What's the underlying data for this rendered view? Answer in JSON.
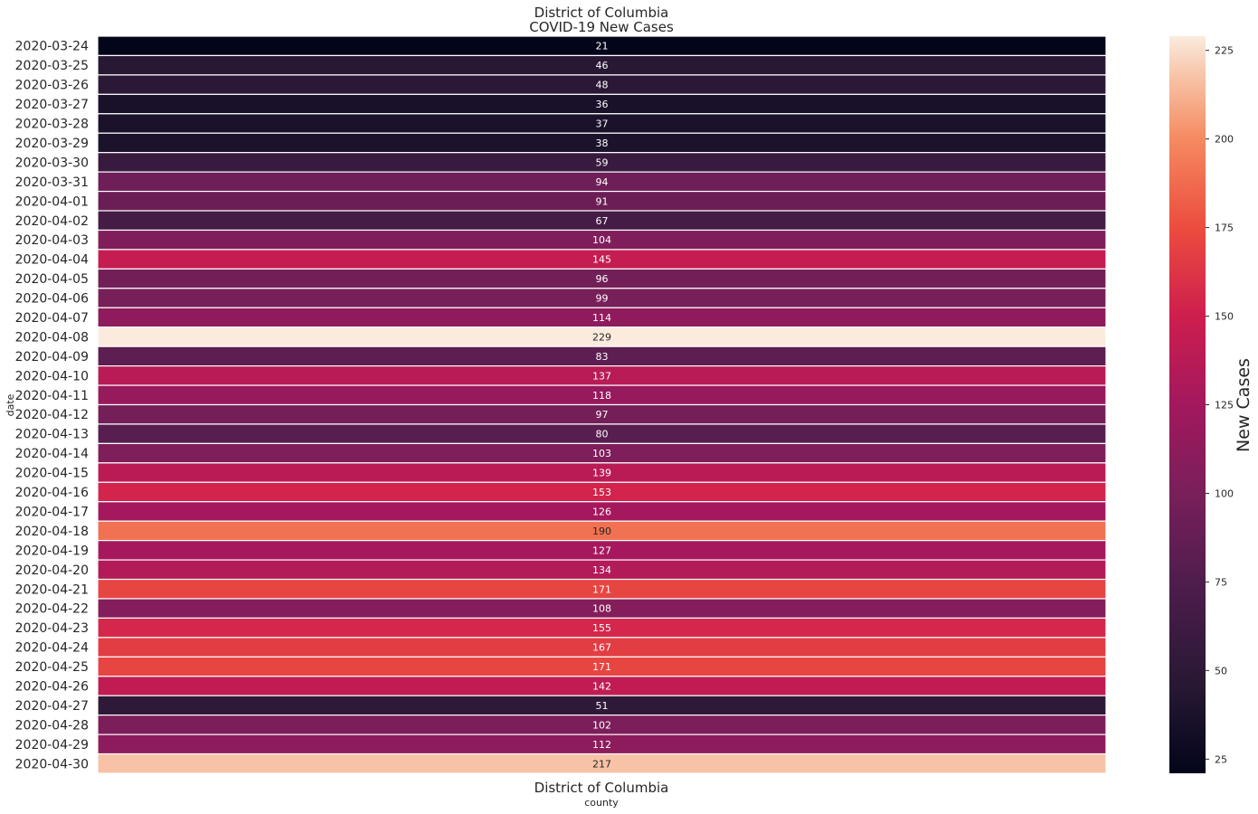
{
  "chart_data": {
    "type": "heatmap",
    "title_line1": "District of Columbia",
    "title_line2": "COVID-19 New Cases",
    "xlabel": "county",
    "ylabel": "date",
    "x_categories": [
      "District of Columbia"
    ],
    "colorbar_label": "New Cases",
    "colorbar_range": [
      21,
      229
    ],
    "colorbar_ticks": [
      25,
      50,
      75,
      100,
      125,
      150,
      175,
      200,
      225
    ],
    "colormap": "rocket",
    "dates": [
      "2020-03-24",
      "2020-03-25",
      "2020-03-26",
      "2020-03-27",
      "2020-03-28",
      "2020-03-29",
      "2020-03-30",
      "2020-03-31",
      "2020-04-01",
      "2020-04-02",
      "2020-04-03",
      "2020-04-04",
      "2020-04-05",
      "2020-04-06",
      "2020-04-07",
      "2020-04-08",
      "2020-04-09",
      "2020-04-10",
      "2020-04-11",
      "2020-04-12",
      "2020-04-13",
      "2020-04-14",
      "2020-04-15",
      "2020-04-16",
      "2020-04-17",
      "2020-04-18",
      "2020-04-19",
      "2020-04-20",
      "2020-04-21",
      "2020-04-22",
      "2020-04-23",
      "2020-04-24",
      "2020-04-25",
      "2020-04-26",
      "2020-04-27",
      "2020-04-28",
      "2020-04-29",
      "2020-04-30"
    ],
    "values": [
      21,
      46,
      48,
      36,
      37,
      38,
      59,
      94,
      91,
      67,
      104,
      145,
      96,
      99,
      114,
      229,
      83,
      137,
      118,
      97,
      80,
      103,
      139,
      153,
      126,
      190,
      127,
      134,
      171,
      108,
      155,
      167,
      171,
      142,
      51,
      102,
      112,
      217
    ]
  }
}
